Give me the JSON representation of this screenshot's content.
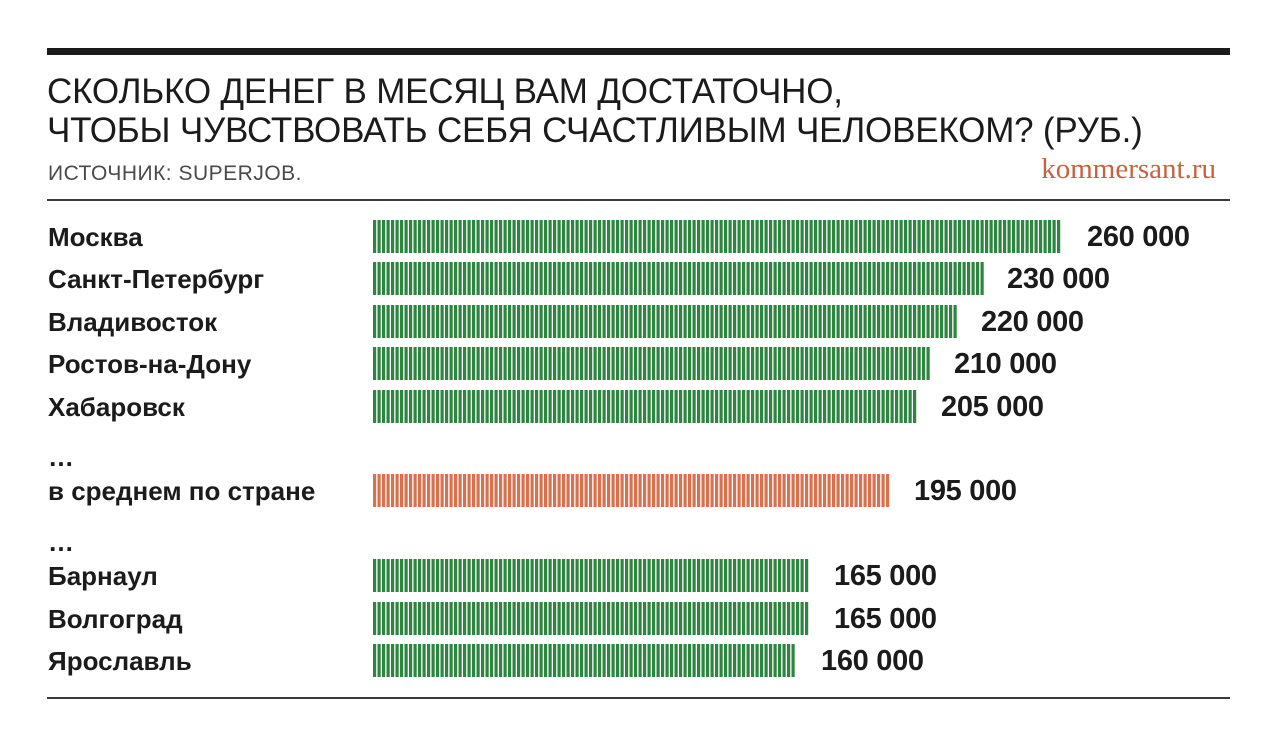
{
  "header": {
    "title_line1": "СКОЛЬКО ДЕНЕГ В МЕСЯЦ ВАМ ДОСТАТОЧНО,",
    "title_line2": "ЧТОБЫ ЧУВСТВОВАТЬ СЕБЯ СЧАСТЛИВЫМ ЧЕЛОВЕКОМ? (РУБ.)",
    "source": "ИСТОЧНИК: SUPERJOB.",
    "brand": "kommersant.ru"
  },
  "colors": {
    "city_bar": "#2e8540",
    "average_bar": "#d8714e",
    "text": "#1b1b1b",
    "brand": "#c9603f"
  },
  "chart_data": {
    "type": "bar",
    "orientation": "horizontal",
    "title": "СКОЛЬКО ДЕНЕГ В МЕСЯЦ ВАМ ДОСТАТОЧНО, ЧТОБЫ ЧУВСТВОВАТЬ СЕБЯ СЧАСТЛИВЫМ ЧЕЛОВЕКОМ? (РУБ.)",
    "xlim": [
      0,
      260000
    ],
    "rows": [
      {
        "kind": "bar",
        "category": "Москва",
        "value": 260000,
        "label": "260 000",
        "group": "city"
      },
      {
        "kind": "bar",
        "category": "Санкт-Петербург",
        "value": 230000,
        "label": "230 000",
        "group": "city"
      },
      {
        "kind": "bar",
        "category": "Владивосток",
        "value": 220000,
        "label": "220 000",
        "group": "city"
      },
      {
        "kind": "bar",
        "category": "Ростов-на-Дону",
        "value": 210000,
        "label": "210 000",
        "group": "city"
      },
      {
        "kind": "bar",
        "category": "Хабаровск",
        "value": 205000,
        "label": "205 000",
        "group": "city"
      },
      {
        "kind": "gap",
        "category": "…"
      },
      {
        "kind": "bar",
        "category": "в среднем по стране",
        "value": 195000,
        "label": "195 000",
        "group": "average"
      },
      {
        "kind": "gap",
        "category": "…"
      },
      {
        "kind": "bar",
        "category": "Барнаул",
        "value": 165000,
        "label": "165 000",
        "group": "city"
      },
      {
        "kind": "bar",
        "category": "Волгоград",
        "value": 165000,
        "label": "165 000",
        "group": "city"
      },
      {
        "kind": "bar",
        "category": "Ярославль",
        "value": 160000,
        "label": "160 000",
        "group": "city"
      }
    ]
  }
}
